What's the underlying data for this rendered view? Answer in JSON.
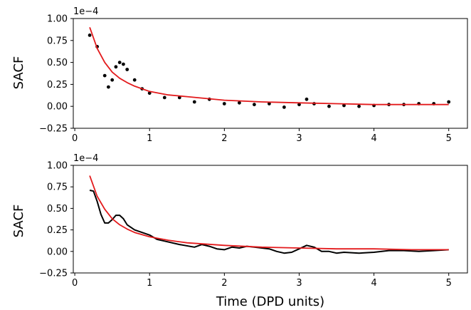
{
  "colors": {
    "data": "#000000",
    "fit": "#e31a1c",
    "axes": "#000000"
  },
  "chart_data": [
    {
      "type": "scatter",
      "ylabel": "SACF",
      "xlabel": "",
      "offset_text": "1e−4",
      "xlim": [
        -0.02,
        5.25
      ],
      "ylim": [
        -0.25,
        1.0
      ],
      "xticks": [
        0,
        1,
        2,
        3,
        4,
        5
      ],
      "yticks": [
        -0.25,
        0.0,
        0.25,
        0.5,
        0.75,
        1.0
      ],
      "xtick_labels": [
        "0",
        "1",
        "2",
        "3",
        "4",
        "5"
      ],
      "ytick_labels": [
        "−0.25",
        "0.00",
        "0.25",
        "0.50",
        "0.75",
        "1.00"
      ],
      "grid": false,
      "series": [
        {
          "kind": "scatter",
          "x": [
            0.2,
            0.3,
            0.4,
            0.45,
            0.5,
            0.55,
            0.6,
            0.65,
            0.7,
            0.8,
            0.9,
            1.0,
            1.2,
            1.4,
            1.6,
            1.8,
            2.0,
            2.2,
            2.4,
            2.6,
            2.8,
            3.0,
            3.1,
            3.2,
            3.4,
            3.6,
            3.8,
            4.0,
            4.2,
            4.4,
            4.6,
            4.8,
            5.0
          ],
          "y": [
            0.81,
            0.68,
            0.35,
            0.22,
            0.3,
            0.45,
            0.5,
            0.48,
            0.42,
            0.3,
            0.2,
            0.15,
            0.1,
            0.1,
            0.05,
            0.08,
            0.03,
            0.04,
            0.02,
            0.03,
            -0.01,
            0.02,
            0.08,
            0.03,
            0.0,
            0.01,
            0.0,
            0.01,
            0.02,
            0.02,
            0.03,
            0.03,
            0.05
          ]
        },
        {
          "kind": "fit",
          "x": [
            0.2,
            0.3,
            0.4,
            0.5,
            0.6,
            0.7,
            0.8,
            1.0,
            1.25,
            1.5,
            2.0,
            2.5,
            3.0,
            3.5,
            4.0,
            4.5,
            5.0
          ],
          "y": [
            0.9,
            0.66,
            0.5,
            0.39,
            0.32,
            0.27,
            0.23,
            0.17,
            0.13,
            0.11,
            0.07,
            0.05,
            0.04,
            0.03,
            0.02,
            0.02,
            0.02
          ]
        }
      ]
    },
    {
      "type": "line",
      "ylabel": "SACF",
      "xlabel": "Time (DPD units)",
      "offset_text": "1e−4",
      "xlim": [
        -0.02,
        5.25
      ],
      "ylim": [
        -0.25,
        1.0
      ],
      "xticks": [
        0,
        1,
        2,
        3,
        4,
        5
      ],
      "yticks": [
        -0.25,
        0.0,
        0.25,
        0.5,
        0.75,
        1.0
      ],
      "xtick_labels": [
        "0",
        "1",
        "2",
        "3",
        "4",
        "5"
      ],
      "ytick_labels": [
        "−0.25",
        "0.00",
        "0.25",
        "0.50",
        "0.75",
        "1.00"
      ],
      "grid": false,
      "series": [
        {
          "kind": "line",
          "x": [
            0.2,
            0.25,
            0.3,
            0.35,
            0.4,
            0.45,
            0.5,
            0.55,
            0.6,
            0.65,
            0.7,
            0.8,
            0.9,
            1.0,
            1.1,
            1.2,
            1.4,
            1.6,
            1.7,
            1.8,
            1.9,
            2.0,
            2.1,
            2.2,
            2.3,
            2.4,
            2.5,
            2.6,
            2.7,
            2.8,
            2.9,
            3.0,
            3.1,
            3.2,
            3.3,
            3.4,
            3.5,
            3.6,
            3.8,
            4.0,
            4.2,
            4.4,
            4.6,
            4.8,
            5.0
          ],
          "y": [
            0.71,
            0.7,
            0.58,
            0.43,
            0.33,
            0.33,
            0.37,
            0.42,
            0.42,
            0.38,
            0.31,
            0.25,
            0.22,
            0.19,
            0.14,
            0.12,
            0.08,
            0.05,
            0.08,
            0.06,
            0.03,
            0.02,
            0.05,
            0.04,
            0.06,
            0.05,
            0.04,
            0.03,
            0.0,
            -0.02,
            -0.01,
            0.03,
            0.07,
            0.05,
            0.0,
            0.0,
            -0.02,
            -0.01,
            -0.02,
            -0.01,
            0.01,
            0.01,
            0.0,
            0.01,
            0.02
          ]
        },
        {
          "kind": "fit",
          "x": [
            0.2,
            0.3,
            0.4,
            0.5,
            0.6,
            0.7,
            0.8,
            1.0,
            1.25,
            1.5,
            2.0,
            2.5,
            3.0,
            3.5,
            4.0,
            4.5,
            5.0
          ],
          "y": [
            0.88,
            0.64,
            0.49,
            0.38,
            0.31,
            0.26,
            0.22,
            0.17,
            0.13,
            0.1,
            0.07,
            0.05,
            0.04,
            0.03,
            0.03,
            0.02,
            0.02
          ]
        }
      ]
    }
  ]
}
